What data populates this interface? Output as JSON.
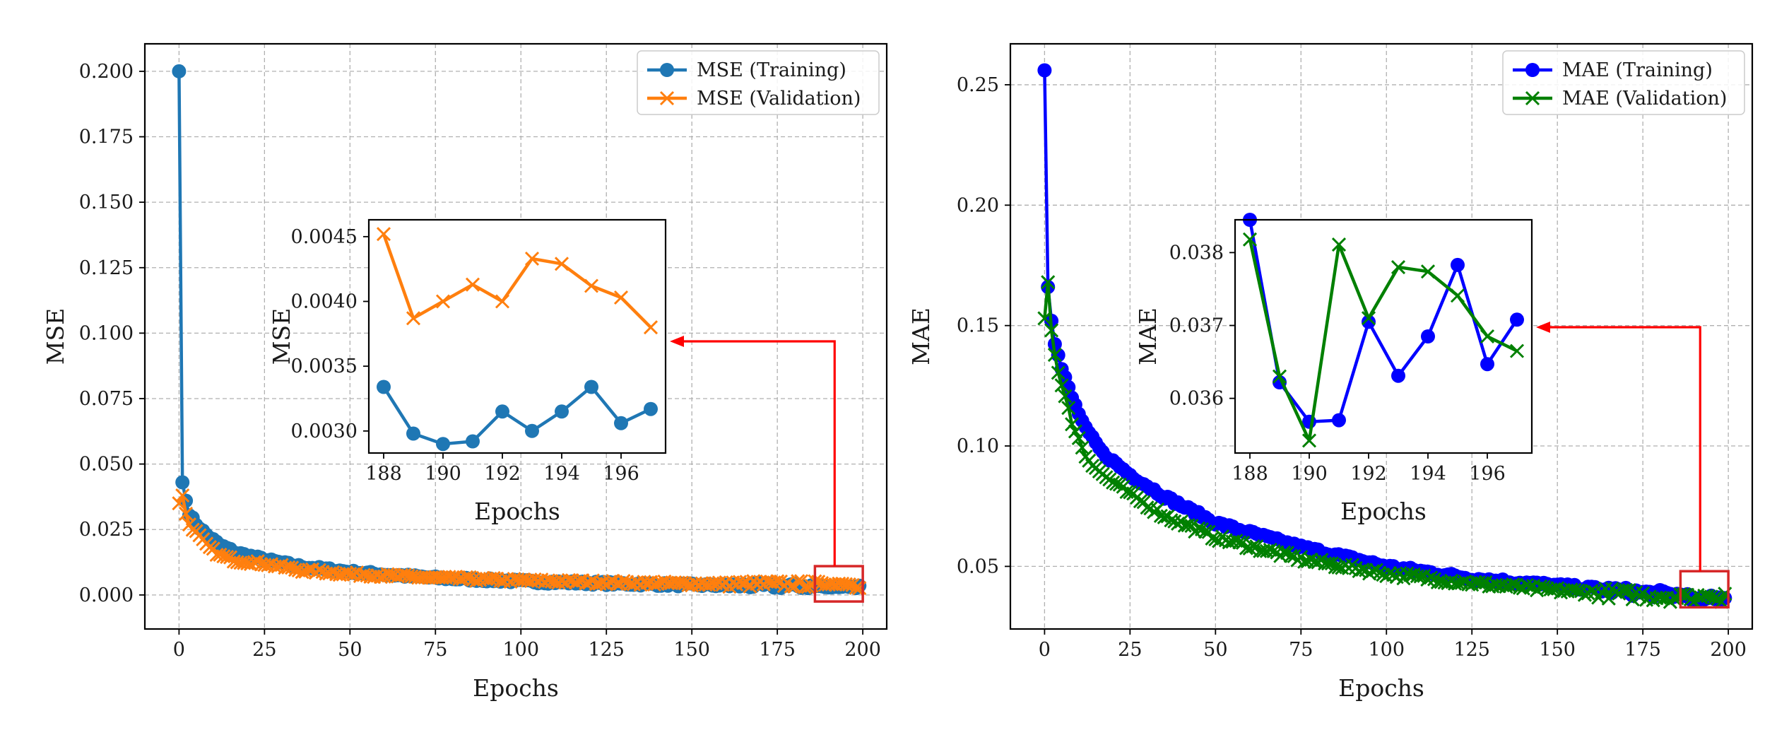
{
  "chart_data": [
    {
      "id": "mse",
      "type": "line",
      "xlabel": "Epochs",
      "ylabel": "MSE",
      "xlim": [
        -10,
        207
      ],
      "ylim": [
        -0.013,
        0.2105
      ],
      "xticks": [
        0,
        25,
        50,
        75,
        100,
        125,
        150,
        175,
        200
      ],
      "yticks": [
        0.0,
        0.025,
        0.05,
        0.075,
        0.1,
        0.125,
        0.15,
        0.175,
        0.2
      ],
      "ytick_labels": [
        "0.000",
        "0.025",
        "0.050",
        "0.075",
        "0.100",
        "0.125",
        "0.150",
        "0.175",
        "0.200"
      ],
      "legend_position": "top-right",
      "series": [
        {
          "name": "MSE (Training)",
          "marker": "circle",
          "color": "#1f77b4",
          "key_points": [
            [
              0,
              0.2
            ],
            [
              1,
              0.043
            ],
            [
              2,
              0.036
            ],
            [
              3,
              0.031
            ],
            [
              5,
              0.027
            ],
            [
              8,
              0.023
            ],
            [
              12,
              0.019
            ],
            [
              17,
              0.016
            ],
            [
              25,
              0.0135
            ],
            [
              35,
              0.011
            ],
            [
              50,
              0.0088
            ],
            [
              75,
              0.0065
            ],
            [
              100,
              0.0052
            ],
            [
              125,
              0.0044
            ],
            [
              150,
              0.0038
            ],
            [
              175,
              0.0035
            ],
            [
              187,
              0.0033
            ],
            [
              199,
              0.0032
            ]
          ]
        },
        {
          "name": "MSE (Validation)",
          "marker": "x",
          "color": "#ff7f0e",
          "key_points": [
            [
              0,
              0.035
            ],
            [
              1,
              0.038
            ],
            [
              2,
              0.031
            ],
            [
              3,
              0.027
            ],
            [
              5,
              0.024
            ],
            [
              8,
              0.019
            ],
            [
              12,
              0.015
            ],
            [
              17,
              0.013
            ],
            [
              25,
              0.012
            ],
            [
              35,
              0.0095
            ],
            [
              50,
              0.008
            ],
            [
              75,
              0.0065
            ],
            [
              100,
              0.0055
            ],
            [
              125,
              0.0048
            ],
            [
              150,
              0.0043
            ],
            [
              175,
              0.0042
            ],
            [
              187,
              0.0041
            ],
            [
              199,
              0.0038
            ]
          ]
        }
      ],
      "inset": {
        "xlabel": "Epochs",
        "ylabel": "MSE",
        "xlim": [
          187.5,
          197.5
        ],
        "ylim": [
          0.00283,
          0.00463
        ],
        "xticks": [
          188,
          190,
          192,
          194,
          196
        ],
        "yticks": [
          0.003,
          0.0035,
          0.004,
          0.0045
        ],
        "ytick_labels": [
          "0.0030",
          "0.0035",
          "0.0040",
          "0.0045"
        ],
        "x": [
          188,
          189,
          190,
          191,
          192,
          193,
          194,
          195,
          196,
          197
        ],
        "series": [
          {
            "name": "MSE (Training)",
            "values": [
              0.00334,
              0.00298,
              0.0029,
              0.00292,
              0.00315,
              0.003,
              0.00315,
              0.00334,
              0.00306,
              0.00317
            ]
          },
          {
            "name": "MSE (Validation)",
            "values": [
              0.00452,
              0.00387,
              0.004,
              0.00413,
              0.004,
              0.00433,
              0.00429,
              0.00412,
              0.00403,
              0.0038
            ]
          }
        ]
      },
      "zoom_box": {
        "x": [
          186,
          200
        ],
        "y": [
          -0.0025,
          0.011
        ]
      }
    },
    {
      "id": "mae",
      "type": "line",
      "xlabel": "Epochs",
      "ylabel": "MAE",
      "xlim": [
        -10,
        207
      ],
      "ylim": [
        0.024,
        0.267
      ],
      "xticks": [
        0,
        25,
        50,
        75,
        100,
        125,
        150,
        175,
        200
      ],
      "yticks": [
        0.05,
        0.1,
        0.15,
        0.2,
        0.25
      ],
      "ytick_labels": [
        "0.05",
        "0.10",
        "0.15",
        "0.20",
        "0.25"
      ],
      "legend_position": "top-right",
      "series": [
        {
          "name": "MAE (Training)",
          "marker": "circle",
          "color": "#0000ff",
          "key_points": [
            [
              0,
              0.256
            ],
            [
              1,
              0.166
            ],
            [
              2,
              0.152
            ],
            [
              3,
              0.143
            ],
            [
              5,
              0.132
            ],
            [
              8,
              0.12
            ],
            [
              12,
              0.107
            ],
            [
              17,
              0.097
            ],
            [
              25,
              0.088
            ],
            [
              35,
              0.079
            ],
            [
              50,
              0.068
            ],
            [
              75,
              0.058
            ],
            [
              100,
              0.05
            ],
            [
              125,
              0.045
            ],
            [
              150,
              0.042
            ],
            [
              175,
              0.039
            ],
            [
              187,
              0.038
            ],
            [
              199,
              0.037
            ]
          ]
        },
        {
          "name": "MAE (Validation)",
          "marker": "x",
          "color": "#008000",
          "key_points": [
            [
              0,
              0.153
            ],
            [
              1,
              0.168
            ],
            [
              2,
              0.148
            ],
            [
              3,
              0.138
            ],
            [
              5,
              0.125
            ],
            [
              8,
              0.11
            ],
            [
              12,
              0.096
            ],
            [
              17,
              0.088
            ],
            [
              25,
              0.08
            ],
            [
              35,
              0.071
            ],
            [
              50,
              0.062
            ],
            [
              75,
              0.053
            ],
            [
              100,
              0.047
            ],
            [
              125,
              0.043
            ],
            [
              150,
              0.04
            ],
            [
              175,
              0.038
            ],
            [
              187,
              0.037
            ],
            [
              199,
              0.0366
            ]
          ]
        }
      ],
      "inset": {
        "xlabel": "Epochs",
        "ylabel": "MAE",
        "xlim": [
          187.5,
          197.5
        ],
        "ylim": [
          0.03525,
          0.03845
        ],
        "xticks": [
          188,
          190,
          192,
          194,
          196
        ],
        "yticks": [
          0.036,
          0.037,
          0.038
        ],
        "ytick_labels": [
          "0.036",
          "0.037",
          "0.038"
        ],
        "x": [
          188,
          189,
          190,
          191,
          192,
          193,
          194,
          195,
          196,
          197
        ],
        "series": [
          {
            "name": "MAE (Training)",
            "values": [
              0.03845,
              0.03622,
              0.03568,
              0.0357,
              0.03705,
              0.03631,
              0.03685,
              0.03783,
              0.03647,
              0.03708
            ]
          },
          {
            "name": "MAE (Validation)",
            "values": [
              0.03818,
              0.0363,
              0.03542,
              0.03811,
              0.0371,
              0.0378,
              0.03774,
              0.03741,
              0.03685,
              0.03665
            ]
          }
        ]
      },
      "zoom_box": {
        "x": [
          186,
          200
        ],
        "y": [
          0.033,
          0.048
        ]
      }
    }
  ],
  "colors": {
    "grid": "#b0b0b0",
    "zoom_box": "#d62728",
    "arrow": "#ff0000"
  }
}
